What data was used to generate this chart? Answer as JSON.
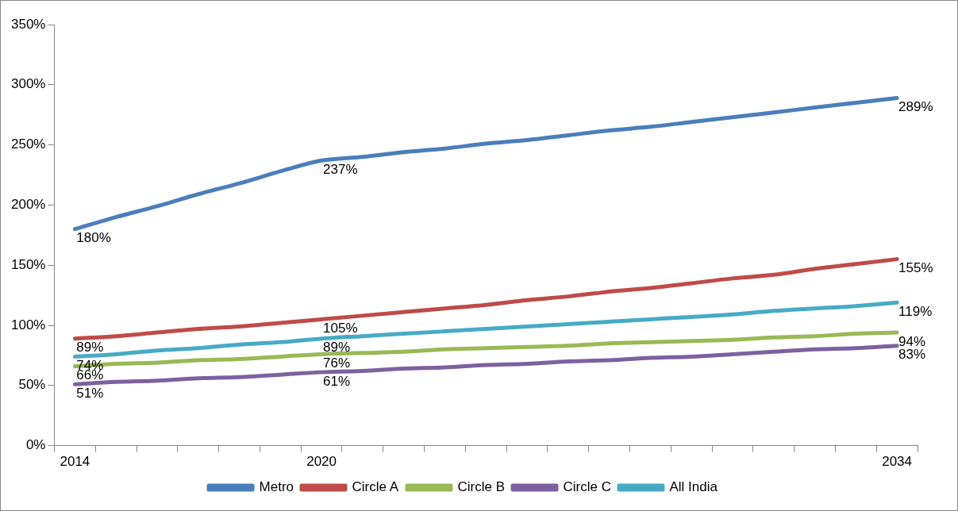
{
  "chart_data": {
    "type": "line",
    "categories": [
      "2014",
      null,
      null,
      null,
      null,
      null,
      "2020",
      null,
      null,
      null,
      null,
      null,
      null,
      null,
      null,
      null,
      null,
      null,
      null,
      null,
      "2034"
    ],
    "series": [
      {
        "name": "Metro",
        "color": "#4a7ebb",
        "values": [
          180,
          190,
          199,
          209,
          218,
          228,
          237,
          240,
          244,
          247,
          251,
          254,
          258,
          262,
          265,
          269,
          273,
          277,
          281,
          285,
          289
        ],
        "value_labels": [
          "180%",
          null,
          null,
          null,
          null,
          null,
          "237%",
          null,
          null,
          null,
          null,
          null,
          null,
          null,
          null,
          null,
          null,
          null,
          null,
          null,
          "289%"
        ]
      },
      {
        "name": "Circle A",
        "color": "#be4b48",
        "values": [
          89,
          91,
          94,
          97,
          99,
          102,
          105,
          108,
          111,
          114,
          117,
          121,
          124,
          128,
          131,
          135,
          139,
          142,
          147,
          151,
          155
        ],
        "value_labels": [
          "89%",
          null,
          null,
          null,
          null,
          null,
          "105%",
          null,
          null,
          null,
          null,
          null,
          null,
          null,
          null,
          null,
          null,
          null,
          null,
          null,
          "155%"
        ]
      },
      {
        "name": "Circle B",
        "color": "#98b954",
        "values": [
          66,
          68,
          69,
          71,
          72,
          74,
          76,
          77,
          78,
          80,
          81,
          82,
          83,
          85,
          86,
          87,
          88,
          90,
          91,
          93,
          94
        ],
        "value_labels": [
          "66%",
          null,
          null,
          null,
          null,
          null,
          "76%",
          null,
          null,
          null,
          null,
          null,
          null,
          null,
          null,
          null,
          null,
          null,
          null,
          null,
          "94%"
        ]
      },
      {
        "name": "Circle C",
        "color": "#7d60a0",
        "values": [
          51,
          53,
          54,
          56,
          57,
          59,
          61,
          62,
          64,
          65,
          67,
          68,
          70,
          71,
          73,
          74,
          76,
          78,
          80,
          81,
          83
        ],
        "value_labels": [
          "51%",
          null,
          null,
          null,
          null,
          null,
          "61%",
          null,
          null,
          null,
          null,
          null,
          null,
          null,
          null,
          null,
          null,
          null,
          null,
          null,
          "83%"
        ]
      },
      {
        "name": "All India",
        "color": "#46aac5",
        "values": [
          74,
          76,
          79,
          81,
          84,
          86,
          89,
          91,
          93,
          95,
          97,
          99,
          101,
          103,
          105,
          107,
          109,
          112,
          114,
          116,
          119
        ],
        "value_labels": [
          "74%",
          null,
          null,
          null,
          null,
          null,
          "89%",
          null,
          null,
          null,
          null,
          null,
          null,
          null,
          null,
          null,
          null,
          null,
          null,
          null,
          "119%"
        ]
      }
    ],
    "ylim": [
      0,
      350
    ],
    "yticks": [
      {
        "value": 0,
        "label": "0%"
      },
      {
        "value": 50,
        "label": "50%"
      },
      {
        "value": 100,
        "label": "100%"
      },
      {
        "value": 150,
        "label": "150%"
      },
      {
        "value": 200,
        "label": "200%"
      },
      {
        "value": 250,
        "label": "250%"
      },
      {
        "value": 300,
        "label": "300%"
      },
      {
        "value": 350,
        "label": "350%"
      }
    ],
    "grid": false,
    "legend": "bottom",
    "marker": "none",
    "line_style": "solid"
  }
}
